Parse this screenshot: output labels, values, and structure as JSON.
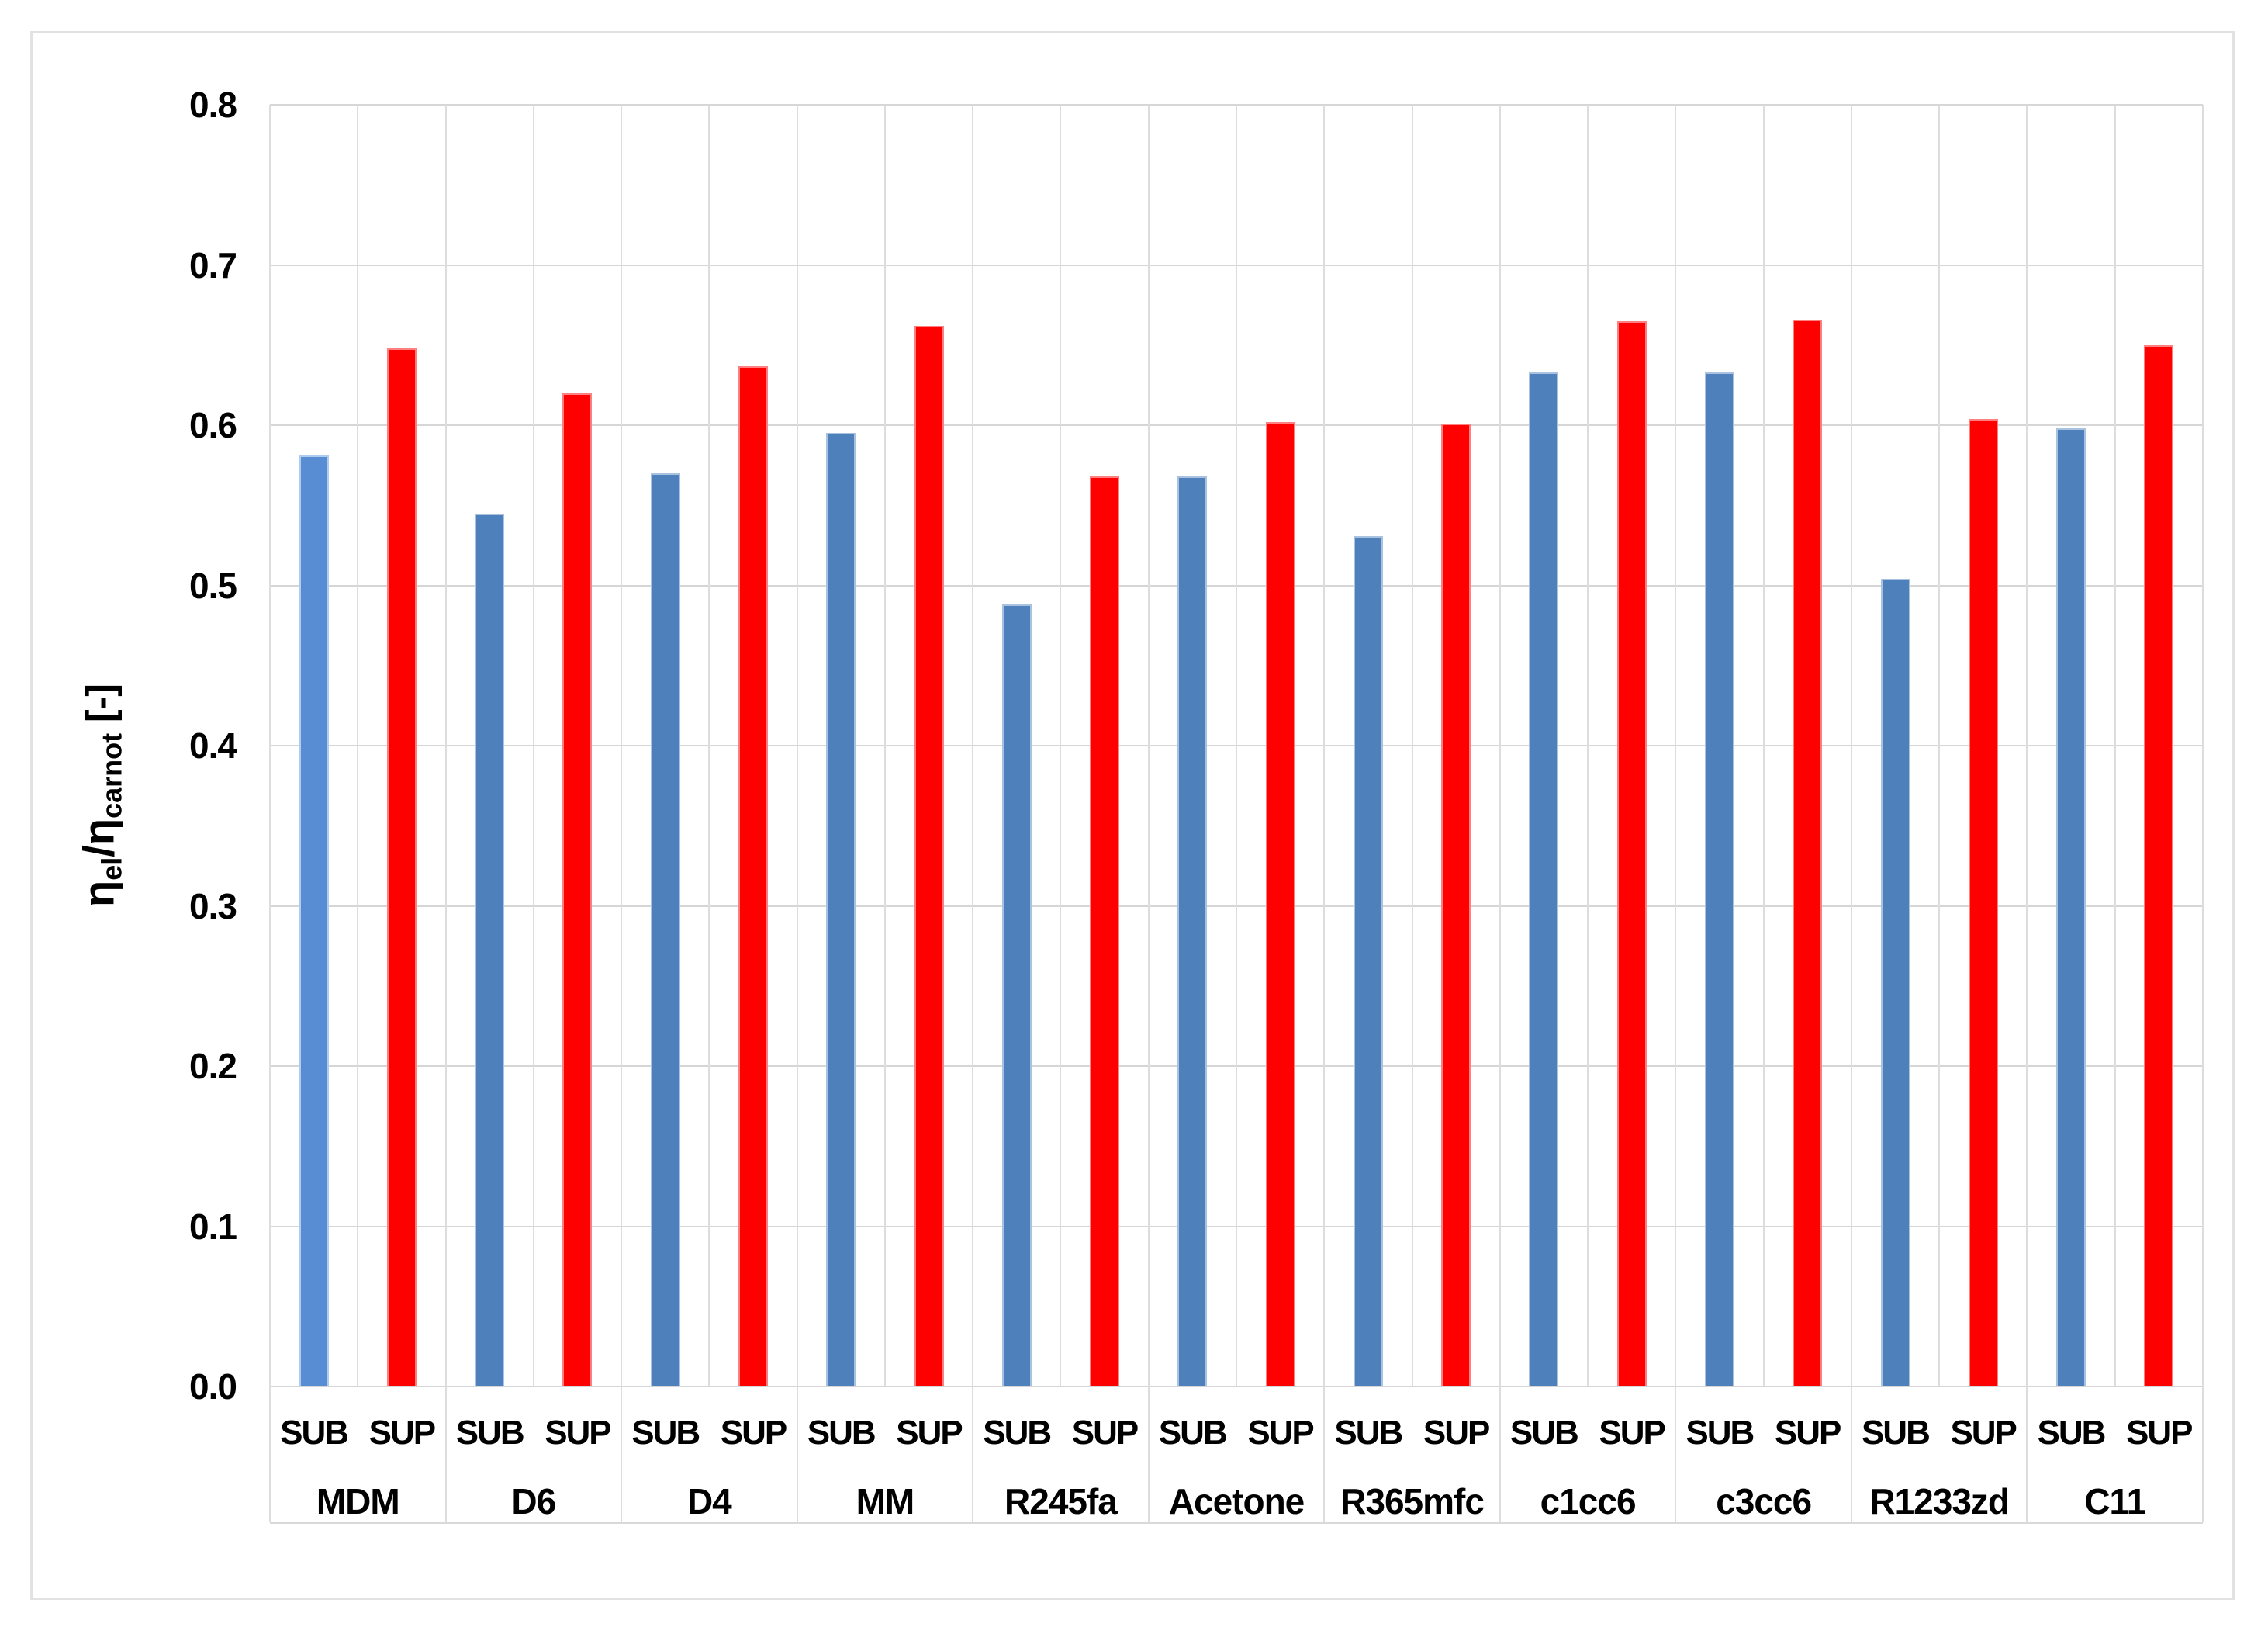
{
  "chart_data": {
    "type": "bar",
    "title": "",
    "ylabel": {
      "eta1": "η",
      "sub1": "el",
      "slash": "/",
      "eta2": "η",
      "sub2": "carnot",
      "units": " [-]"
    },
    "ylim": [
      0.0,
      0.8
    ],
    "ytick_step": 0.1,
    "yticks": [
      "0.8",
      "0.7",
      "0.6",
      "0.5",
      "0.4",
      "0.3",
      "0.2",
      "0.1",
      "0.0"
    ],
    "grid": true,
    "grid_color": "#d6d6d6",
    "legend_position": "none",
    "categories": [
      "MDM",
      "D6",
      "D4",
      "MM",
      "R245fa",
      "Acetone",
      "R365mfc",
      "c1cc6",
      "c3cc6",
      "R1233zd",
      "C11"
    ],
    "bar_sublabels": [
      "SUB",
      "SUP"
    ],
    "series": [
      {
        "name": "SUB",
        "color": "#4e80bc",
        "border_color": "#a9c2e0",
        "first_bar_color": "#588dd4",
        "first_bar_border": "#aecbf0",
        "values": [
          0.581,
          0.545,
          0.57,
          0.595,
          0.488,
          0.568,
          0.531,
          0.633,
          0.633,
          0.504,
          0.598
        ]
      },
      {
        "name": "SUP",
        "color": "#fe0000",
        "border_color": "#ff8080",
        "values": [
          0.648,
          0.62,
          0.637,
          0.662,
          0.568,
          0.602,
          0.601,
          0.665,
          0.666,
          0.604,
          0.65
        ]
      }
    ]
  }
}
